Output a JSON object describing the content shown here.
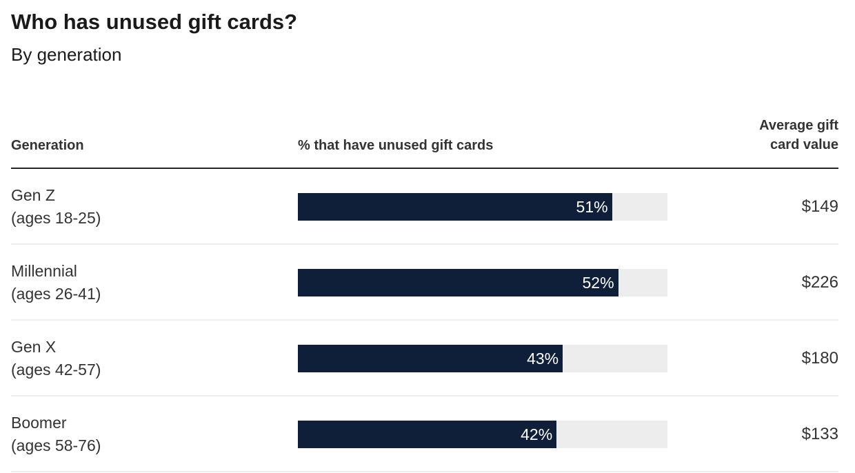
{
  "chart_data": {
    "type": "bar",
    "title": "Who has unused gift cards?",
    "subtitle": "By generation",
    "columns": [
      "Generation",
      "% that have unused gift cards",
      "Average gift card value"
    ],
    "xlim": [
      0,
      60
    ],
    "bar_color": "#0f1f3a",
    "track_color": "#ededed",
    "rows": [
      {
        "name": "Gen Z",
        "ages": "(ages 18-25)",
        "value": 51,
        "label": "51%",
        "avg": "$149"
      },
      {
        "name": "Millennial",
        "ages": "(ages 26-41)",
        "value": 52,
        "label": "52%",
        "avg": "$226"
      },
      {
        "name": "Gen X",
        "ages": "(ages 42-57)",
        "value": 43,
        "label": "43%",
        "avg": "$180"
      },
      {
        "name": "Boomer",
        "ages": "(ages 58-76)",
        "value": 42,
        "label": "42%",
        "avg": "$133"
      }
    ]
  }
}
